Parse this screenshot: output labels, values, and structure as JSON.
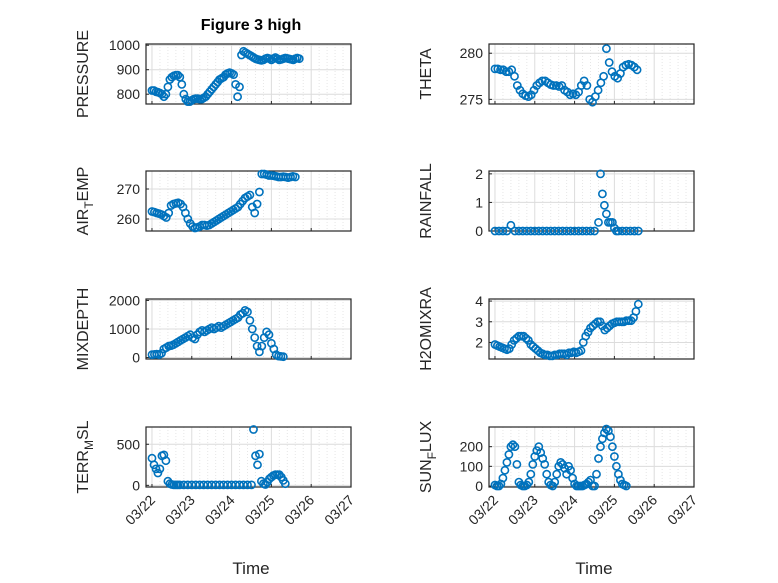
{
  "figure": {
    "title": "Figure 3 high",
    "xlabel": "Time",
    "x_tick_labels": [
      "03/22",
      "03/23",
      "03/24",
      "03/25",
      "03/26",
      "03/27"
    ]
  },
  "chart_data": [
    {
      "type": "scatter",
      "id": "pressure",
      "ylabel": "PRESSURE",
      "title": "Figure 3 high",
      "ylim": [
        760,
        1005
      ],
      "yticks": [
        800,
        900,
        1000
      ],
      "grid": true,
      "marker": "open-circle",
      "x": [
        0.0,
        0.05,
        0.1,
        0.15,
        0.2,
        0.25,
        0.3,
        0.35,
        0.4,
        0.45,
        0.5,
        0.55,
        0.6,
        0.65,
        0.7,
        0.75,
        0.8,
        0.85,
        0.9,
        0.95,
        1.0,
        1.05,
        1.1,
        1.15,
        1.2,
        1.25,
        1.3,
        1.35,
        1.4,
        1.45,
        1.5,
        1.55,
        1.6,
        1.65,
        1.7,
        1.75,
        1.8,
        1.85,
        1.9,
        1.95,
        2.0,
        2.05,
        2.1,
        2.15,
        2.2,
        2.25,
        2.3,
        2.35,
        2.4,
        2.45,
        2.5,
        2.55,
        2.6,
        2.65,
        2.7,
        2.75,
        2.8,
        2.85,
        2.9,
        2.95,
        3.0,
        3.05,
        3.1,
        3.15,
        3.2,
        3.25,
        3.3,
        3.35,
        3.4,
        3.45,
        3.5,
        3.55,
        3.6,
        3.65,
        3.7
      ],
      "y": [
        815,
        815,
        810,
        808,
        805,
        800,
        790,
        800,
        830,
        860,
        870,
        875,
        878,
        878,
        870,
        840,
        800,
        780,
        770,
        770,
        775,
        780,
        782,
        782,
        780,
        780,
        785,
        790,
        800,
        810,
        820,
        830,
        840,
        850,
        860,
        865,
        870,
        880,
        885,
        888,
        885,
        880,
        840,
        790,
        830,
        960,
        975,
        970,
        965,
        960,
        955,
        950,
        945,
        942,
        940,
        938,
        940,
        945,
        948,
        945,
        940,
        945,
        950,
        945,
        940,
        942,
        945,
        948,
        946,
        944,
        942,
        940,
        945,
        948,
        945
      ]
    },
    {
      "type": "scatter",
      "id": "theta",
      "ylabel": "THETA",
      "ylim": [
        274.5,
        281
      ],
      "yticks": [
        275,
        280
      ],
      "grid": true,
      "marker": "open-circle",
      "x": [
        0.0,
        0.07,
        0.14,
        0.21,
        0.28,
        0.35,
        0.42,
        0.49,
        0.56,
        0.63,
        0.7,
        0.77,
        0.84,
        0.91,
        0.98,
        1.05,
        1.12,
        1.19,
        1.26,
        1.33,
        1.4,
        1.47,
        1.54,
        1.61,
        1.68,
        1.75,
        1.82,
        1.89,
        1.96,
        2.03,
        2.1,
        2.17,
        2.24,
        2.31,
        2.38,
        2.45,
        2.52,
        2.59,
        2.66,
        2.73,
        2.8,
        2.87,
        2.94,
        3.01,
        3.08,
        3.15,
        3.22,
        3.29,
        3.36,
        3.43,
        3.5,
        3.57
      ],
      "y": [
        278.3,
        278.3,
        278.2,
        278.2,
        278.0,
        278.0,
        278.2,
        277.5,
        276.5,
        276.0,
        275.6,
        275.4,
        275.3,
        275.5,
        276.0,
        276.5,
        276.8,
        277.0,
        277.0,
        276.8,
        276.6,
        276.5,
        276.5,
        276.4,
        276.5,
        276.0,
        275.8,
        275.5,
        275.6,
        275.5,
        275.8,
        276.5,
        277.0,
        276.5,
        275.0,
        274.7,
        275.3,
        276.0,
        276.8,
        277.5,
        280.5,
        279.0,
        278.0,
        277.5,
        277.3,
        277.8,
        278.5,
        278.7,
        278.8,
        278.7,
        278.5,
        278.2
      ]
    },
    {
      "type": "scatter",
      "id": "air_temp",
      "ylabel": "AIR_TEMP",
      "ylim": [
        256,
        276
      ],
      "yticks": [
        260,
        270
      ],
      "grid": true,
      "marker": "open-circle",
      "x": [
        0.0,
        0.06,
        0.12,
        0.18,
        0.24,
        0.3,
        0.36,
        0.42,
        0.48,
        0.54,
        0.6,
        0.66,
        0.72,
        0.78,
        0.84,
        0.9,
        0.96,
        1.02,
        1.08,
        1.14,
        1.2,
        1.26,
        1.32,
        1.38,
        1.44,
        1.5,
        1.56,
        1.62,
        1.68,
        1.74,
        1.8,
        1.86,
        1.92,
        1.98,
        2.04,
        2.1,
        2.16,
        2.22,
        2.28,
        2.34,
        2.4,
        2.46,
        2.52,
        2.58,
        2.64,
        2.7,
        2.76,
        2.82,
        2.88,
        2.94,
        3.0,
        3.06,
        3.12,
        3.18,
        3.24,
        3.3,
        3.36,
        3.42,
        3.48,
        3.54,
        3.6
      ],
      "y": [
        262.5,
        262.3,
        262.0,
        261.8,
        261.5,
        261.0,
        260.5,
        262.0,
        264.5,
        265.0,
        265.2,
        265.4,
        265.0,
        264.0,
        262.0,
        260.0,
        258.5,
        257.5,
        257.0,
        257.2,
        257.5,
        258.0,
        258.0,
        257.8,
        258.0,
        258.5,
        259.0,
        259.5,
        260.0,
        260.5,
        261.0,
        261.5,
        262.0,
        262.5,
        263.0,
        263.5,
        264.0,
        265.0,
        266.0,
        267.0,
        267.5,
        268.0,
        264.0,
        262.0,
        265.0,
        269.0,
        275.0,
        275.0,
        274.8,
        274.5,
        274.5,
        274.4,
        274.2,
        274.0,
        274.0,
        274.1,
        274.0,
        273.8,
        274.0,
        274.2,
        274.0
      ]
    },
    {
      "type": "scatter",
      "id": "rainfall",
      "ylabel": "RAINFALL",
      "ylim": [
        0,
        2.1
      ],
      "yticks": [
        0,
        1,
        2
      ],
      "grid": true,
      "marker": "open-circle",
      "x": [
        0.0,
        0.1,
        0.2,
        0.3,
        0.4,
        0.5,
        0.6,
        0.7,
        0.8,
        0.9,
        1.0,
        1.1,
        1.2,
        1.3,
        1.4,
        1.5,
        1.6,
        1.7,
        1.8,
        1.9,
        2.0,
        2.1,
        2.2,
        2.3,
        2.4,
        2.5,
        2.6,
        2.65,
        2.7,
        2.75,
        2.8,
        2.85,
        2.9,
        2.95,
        3.0,
        3.05,
        3.1,
        3.2,
        3.3,
        3.4,
        3.5,
        3.6
      ],
      "y": [
        0,
        0,
        0,
        0,
        0.2,
        0,
        0,
        0,
        0,
        0,
        0,
        0,
        0,
        0,
        0,
        0,
        0,
        0,
        0,
        0,
        0,
        0,
        0,
        0,
        0,
        0,
        0.3,
        2.0,
        1.3,
        0.9,
        0.6,
        0.3,
        0.3,
        0.3,
        0.1,
        0,
        0,
        0,
        0,
        0,
        0,
        0
      ]
    },
    {
      "type": "scatter",
      "id": "mixdepth",
      "ylabel": "MIXDEPTH",
      "ylim": [
        -50,
        2050
      ],
      "yticks": [
        0,
        1000,
        2000
      ],
      "grid": true,
      "marker": "open-circle",
      "x": [
        0.0,
        0.06,
        0.12,
        0.18,
        0.24,
        0.3,
        0.36,
        0.42,
        0.48,
        0.54,
        0.6,
        0.66,
        0.72,
        0.78,
        0.84,
        0.9,
        0.96,
        1.02,
        1.08,
        1.14,
        1.2,
        1.26,
        1.32,
        1.38,
        1.44,
        1.5,
        1.56,
        1.62,
        1.68,
        1.74,
        1.8,
        1.86,
        1.92,
        1.98,
        2.04,
        2.1,
        2.16,
        2.22,
        2.28,
        2.34,
        2.4,
        2.46,
        2.52,
        2.58,
        2.64,
        2.7,
        2.76,
        2.82,
        2.88,
        2.94,
        3.0,
        3.06,
        3.12,
        3.18,
        3.24,
        3.3
      ],
      "y": [
        100,
        110,
        120,
        100,
        150,
        300,
        350,
        400,
        420,
        450,
        500,
        550,
        600,
        650,
        700,
        750,
        800,
        700,
        650,
        800,
        900,
        950,
        900,
        950,
        1000,
        1050,
        1000,
        1050,
        1100,
        1050,
        1100,
        1150,
        1200,
        1250,
        1300,
        1350,
        1400,
        1500,
        1550,
        1650,
        1600,
        1300,
        1000,
        700,
        400,
        200,
        400,
        700,
        900,
        800,
        500,
        300,
        100,
        50,
        40,
        30
      ]
    },
    {
      "type": "scatter",
      "id": "h2omixra",
      "ylabel": "H2OMIXRA",
      "ylim": [
        1.2,
        4.1
      ],
      "yticks": [
        2,
        3,
        4
      ],
      "grid": true,
      "marker": "open-circle",
      "x": [
        0.0,
        0.06,
        0.12,
        0.18,
        0.24,
        0.3,
        0.36,
        0.42,
        0.48,
        0.54,
        0.6,
        0.66,
        0.72,
        0.78,
        0.84,
        0.9,
        0.96,
        1.02,
        1.08,
        1.14,
        1.2,
        1.26,
        1.32,
        1.38,
        1.44,
        1.5,
        1.56,
        1.62,
        1.68,
        1.74,
        1.8,
        1.86,
        1.92,
        1.98,
        2.04,
        2.1,
        2.16,
        2.22,
        2.28,
        2.34,
        2.4,
        2.46,
        2.52,
        2.58,
        2.64,
        2.7,
        2.76,
        2.82,
        2.88,
        2.94,
        3.0,
        3.06,
        3.12,
        3.18,
        3.24,
        3.3,
        3.36,
        3.42,
        3.48,
        3.54,
        3.6
      ],
      "y": [
        1.9,
        1.85,
        1.8,
        1.75,
        1.7,
        1.65,
        1.7,
        1.9,
        2.1,
        2.2,
        2.3,
        2.3,
        2.3,
        2.2,
        2.1,
        1.9,
        1.8,
        1.7,
        1.6,
        1.5,
        1.45,
        1.4,
        1.4,
        1.35,
        1.35,
        1.4,
        1.4,
        1.45,
        1.45,
        1.45,
        1.4,
        1.5,
        1.5,
        1.55,
        1.5,
        1.55,
        1.6,
        2.0,
        2.3,
        2.5,
        2.7,
        2.8,
        2.9,
        3.0,
        3.0,
        2.8,
        2.6,
        2.7,
        2.8,
        2.9,
        2.95,
        3.0,
        3.0,
        3.0,
        3.0,
        3.05,
        3.05,
        3.05,
        3.2,
        3.5,
        3.85
      ]
    },
    {
      "type": "scatter",
      "id": "terr_msl",
      "ylabel": "TERR_MSL",
      "ylim": [
        -20,
        710
      ],
      "yticks": [
        0,
        500
      ],
      "grid": true,
      "marker": "open-circle",
      "x": [
        0.0,
        0.05,
        0.1,
        0.15,
        0.2,
        0.25,
        0.3,
        0.35,
        0.4,
        0.45,
        0.5,
        0.55,
        0.6,
        0.65,
        0.7,
        0.8,
        0.9,
        1.0,
        1.1,
        1.2,
        1.3,
        1.4,
        1.5,
        1.6,
        1.7,
        1.8,
        1.9,
        2.0,
        2.1,
        2.2,
        2.3,
        2.4,
        2.5,
        2.55,
        2.6,
        2.65,
        2.7,
        2.75,
        2.8,
        2.85,
        2.9,
        2.95,
        3.0,
        3.05,
        3.1,
        3.15,
        3.2,
        3.25,
        3.3,
        3.35
      ],
      "y": [
        330,
        250,
        200,
        150,
        200,
        360,
        370,
        300,
        50,
        20,
        10,
        5,
        5,
        5,
        5,
        5,
        5,
        5,
        5,
        5,
        5,
        5,
        5,
        5,
        5,
        5,
        5,
        5,
        5,
        5,
        5,
        5,
        5,
        680,
        360,
        250,
        380,
        50,
        20,
        10,
        40,
        80,
        100,
        120,
        130,
        130,
        130,
        100,
        60,
        20
      ]
    },
    {
      "type": "scatter",
      "id": "sun_flux",
      "ylabel": "SUN_FLUX",
      "ylim": [
        -5,
        300
      ],
      "yticks": [
        0,
        100,
        200
      ],
      "grid": true,
      "marker": "open-circle",
      "x": [
        0.0,
        0.05,
        0.1,
        0.15,
        0.2,
        0.25,
        0.3,
        0.35,
        0.4,
        0.45,
        0.5,
        0.55,
        0.6,
        0.65,
        0.7,
        0.75,
        0.8,
        0.85,
        0.9,
        0.95,
        1.0,
        1.05,
        1.1,
        1.15,
        1.2,
        1.25,
        1.3,
        1.35,
        1.4,
        1.45,
        1.5,
        1.55,
        1.6,
        1.65,
        1.7,
        1.75,
        1.8,
        1.85,
        1.9,
        1.95,
        2.0,
        2.05,
        2.1,
        2.15,
        2.2,
        2.25,
        2.3,
        2.35,
        2.4,
        2.45,
        2.5,
        2.55,
        2.6,
        2.65,
        2.7,
        2.75,
        2.8,
        2.85,
        2.9,
        2.95,
        3.0,
        3.05,
        3.1,
        3.15,
        3.2,
        3.25,
        3.3
      ],
      "y": [
        5,
        0,
        0,
        10,
        40,
        80,
        120,
        160,
        200,
        210,
        200,
        110,
        20,
        5,
        0,
        0,
        5,
        20,
        60,
        110,
        150,
        180,
        200,
        170,
        140,
        110,
        60,
        20,
        5,
        0,
        20,
        60,
        100,
        120,
        110,
        90,
        60,
        100,
        80,
        40,
        10,
        0,
        0,
        0,
        0,
        5,
        10,
        20,
        30,
        0,
        0,
        60,
        140,
        200,
        240,
        270,
        290,
        280,
        250,
        200,
        150,
        100,
        60,
        30,
        10,
        5,
        0
      ]
    }
  ]
}
